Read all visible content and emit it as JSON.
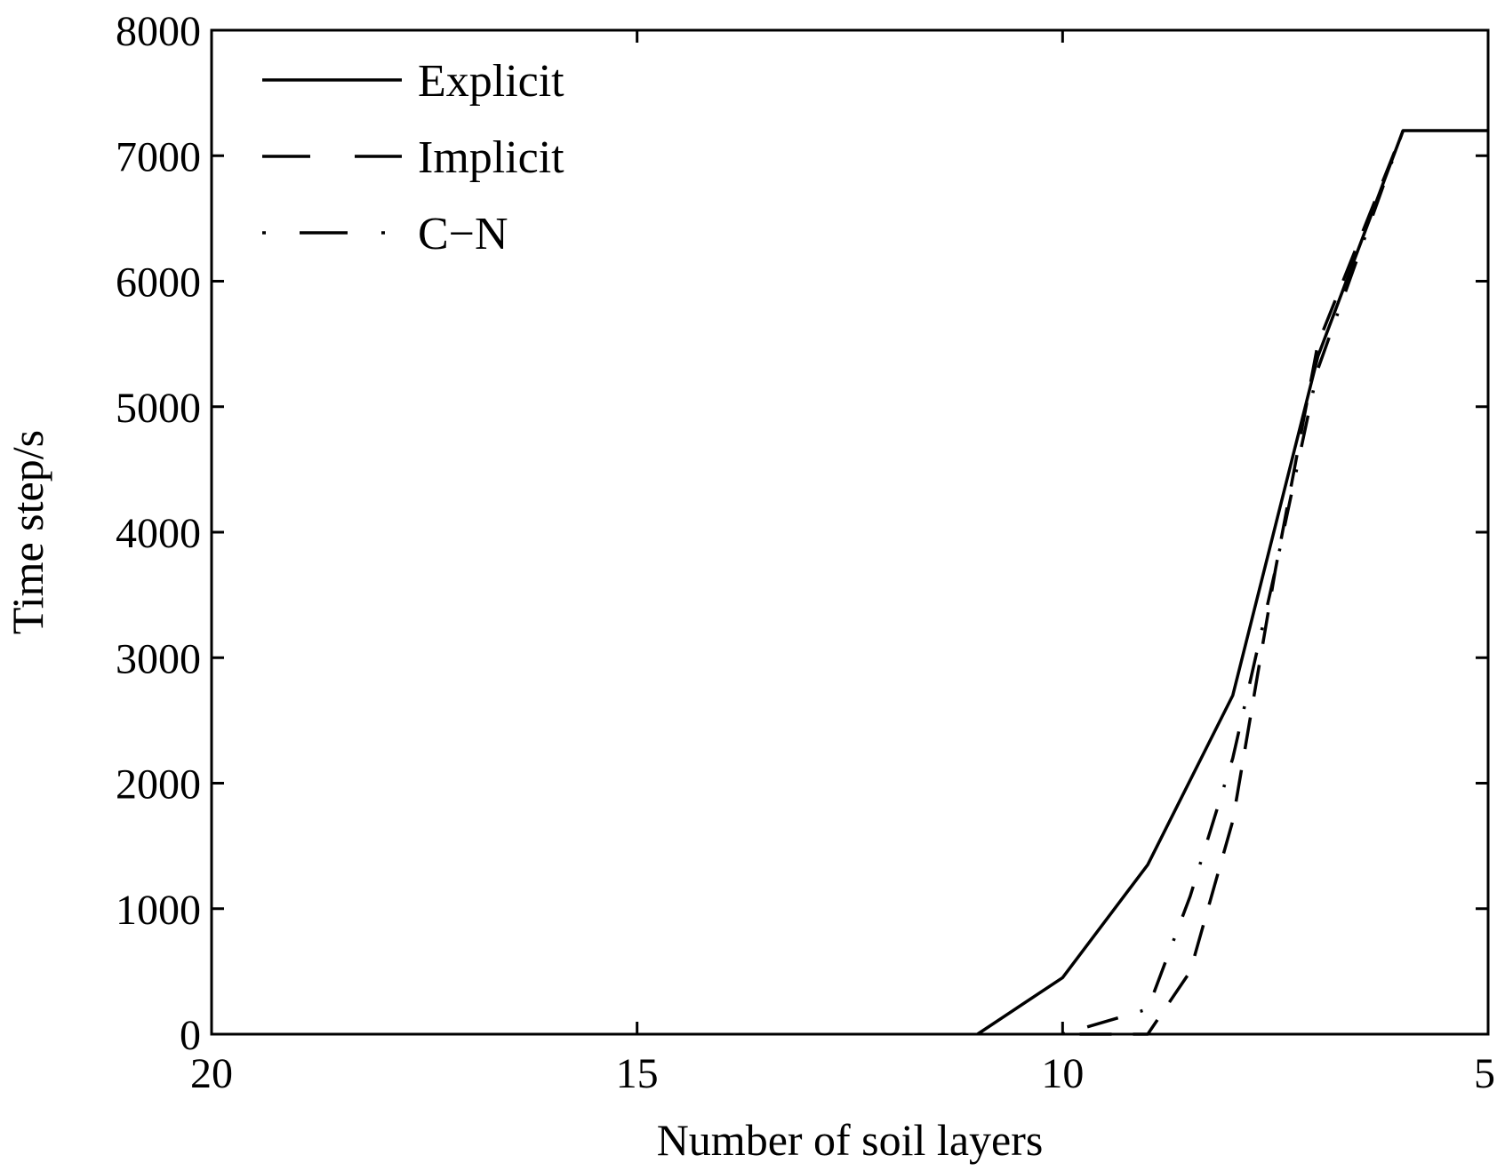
{
  "chart_data": {
    "type": "line",
    "title": "",
    "xlabel": "Number of soil layers",
    "ylabel": "Time step/s",
    "xlim": [
      20,
      5
    ],
    "ylim": [
      0,
      8000
    ],
    "x_reversed": true,
    "xticks": [
      20,
      15,
      10,
      5
    ],
    "yticks": [
      0,
      1000,
      2000,
      3000,
      4000,
      5000,
      6000,
      7000,
      8000
    ],
    "grid": false,
    "legend_position": "top-left",
    "series": [
      {
        "name": "Explicit",
        "style": "solid",
        "color": "#000000",
        "points": [
          [
            11,
            0
          ],
          [
            10,
            450
          ],
          [
            9,
            1350
          ],
          [
            8,
            2700
          ],
          [
            7,
            5400
          ],
          [
            6,
            7200
          ],
          [
            5,
            7200
          ]
        ]
      },
      {
        "name": "Implicit",
        "style": "dashed",
        "color": "#000000",
        "points": [
          [
            9.8,
            0
          ],
          [
            9,
            0
          ],
          [
            8.5,
            500
          ],
          [
            8,
            1700
          ],
          [
            7.5,
            3700
          ],
          [
            7,
            5500
          ],
          [
            6,
            7200
          ]
        ]
      },
      {
        "name": "C−N",
        "style": "dashdot",
        "color": "#000000",
        "points": [
          [
            10,
            0
          ],
          [
            9,
            200
          ],
          [
            8.5,
            1100
          ],
          [
            8,
            2200
          ],
          [
            7.5,
            3700
          ],
          [
            7,
            5300
          ],
          [
            6,
            7200
          ]
        ]
      }
    ]
  }
}
